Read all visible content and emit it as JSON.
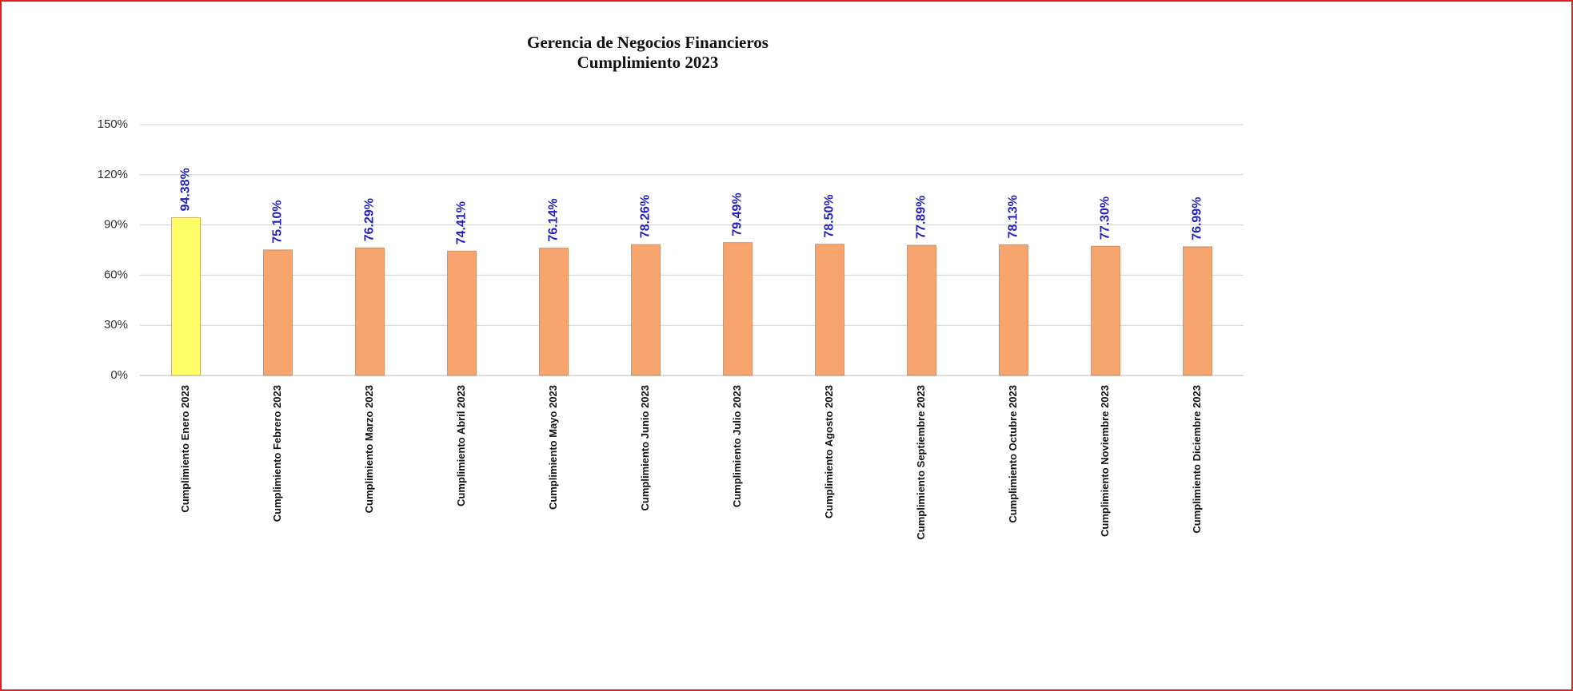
{
  "chart_data": {
    "type": "bar",
    "title": [
      "Gerencia de Negocios Financieros",
      "Cumplimiento 2023"
    ],
    "categories": [
      "Cumplimiento Enero 2023",
      "Cumplimiento Febrero 2023",
      "Cumplimiento Marzo 2023",
      "Cumplimiento Abril 2023",
      "Cumplimiento Mayo 2023",
      "Cumplimiento Junio 2023",
      "Cumplimiento Julio 2023",
      "Cumplimiento Agosto 2023",
      "Cumplimiento Septiembre 2023",
      "Cumplimiento Octubre 2023",
      "Cumplimiento Noviembre 2023",
      "Cumplimiento Diciembre 2023"
    ],
    "values": [
      94.38,
      75.1,
      76.29,
      74.41,
      76.14,
      78.26,
      79.49,
      78.5,
      77.89,
      78.13,
      77.3,
      76.99
    ],
    "value_labels": [
      "94.38%",
      "75.10%",
      "76.29%",
      "74.41%",
      "76.14%",
      "78.26%",
      "79.49%",
      "78.50%",
      "77.89%",
      "78.13%",
      "77.30%",
      "76.99%"
    ],
    "colors": [
      "#ffff66",
      "#f7a56e",
      "#f7a56e",
      "#f7a56e",
      "#f7a56e",
      "#f7a56e",
      "#f7a56e",
      "#f7a56e",
      "#f7a56e",
      "#f7a56e",
      "#f7a56e",
      "#f7a56e"
    ],
    "ylim": [
      0,
      150
    ],
    "yticks": [
      {
        "value": 0,
        "label": "0%"
      },
      {
        "value": 30,
        "label": "30%"
      },
      {
        "value": 60,
        "label": "60%"
      },
      {
        "value": 90,
        "label": "90%"
      },
      {
        "value": 120,
        "label": "120%"
      },
      {
        "value": 150,
        "label": "150%"
      }
    ],
    "grid": true
  }
}
